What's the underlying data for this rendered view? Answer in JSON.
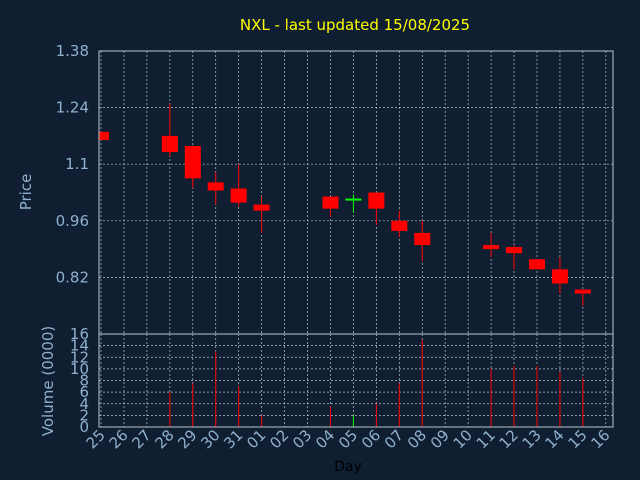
{
  "chart_data": {
    "type": "candlestick",
    "title": "NXL - last updated 15/08/2025",
    "xlabel": "Day",
    "colors": {
      "background": "#0f1e30",
      "down": "#ff0000",
      "up": "#00ff00",
      "title": "#ffff00",
      "axis_text": "#8fb1cf",
      "grid": "#b8c4d0"
    },
    "grid": true,
    "x_ticks": [
      "25",
      "26",
      "27",
      "28",
      "29",
      "30",
      "31",
      "01",
      "02",
      "03",
      "04",
      "05",
      "06",
      "07",
      "08",
      "09",
      "10",
      "11",
      "12",
      "13",
      "14",
      "15",
      "16"
    ],
    "price_panel": {
      "ylabel": "Price",
      "ylim": [
        0.68,
        1.38
      ],
      "y_ticks": [
        "1.38",
        "1.24",
        "1.1",
        "0.96",
        "0.82"
      ],
      "candles": [
        {
          "x": "25",
          "open": 1.18,
          "high": 1.18,
          "low": 1.16,
          "close": 1.16
        },
        {
          "x": "28",
          "open": 1.17,
          "high": 1.25,
          "low": 1.12,
          "close": 1.13
        },
        {
          "x": "29",
          "open": 1.145,
          "high": 1.145,
          "low": 1.04,
          "close": 1.065
        },
        {
          "x": "30",
          "open": 1.055,
          "high": 1.08,
          "low": 1.0,
          "close": 1.035
        },
        {
          "x": "31",
          "open": 1.04,
          "high": 1.1,
          "low": 0.995,
          "close": 1.005
        },
        {
          "x": "01",
          "open": 1.0,
          "high": 1.02,
          "low": 0.93,
          "close": 0.985
        },
        {
          "x": "04",
          "open": 1.02,
          "high": 1.02,
          "low": 0.97,
          "close": 0.99
        },
        {
          "x": "05",
          "open": 1.01,
          "high": 1.025,
          "low": 0.98,
          "close": 1.015
        },
        {
          "x": "06",
          "open": 1.03,
          "high": 1.03,
          "low": 0.95,
          "close": 0.99
        },
        {
          "x": "07",
          "open": 0.96,
          "high": 0.985,
          "low": 0.92,
          "close": 0.935
        },
        {
          "x": "08",
          "open": 0.93,
          "high": 0.96,
          "low": 0.86,
          "close": 0.9
        },
        {
          "x": "11",
          "open": 0.9,
          "high": 0.93,
          "low": 0.87,
          "close": 0.89
        },
        {
          "x": "12",
          "open": 0.895,
          "high": 0.9,
          "low": 0.84,
          "close": 0.88
        },
        {
          "x": "13",
          "open": 0.865,
          "high": 0.865,
          "low": 0.84,
          "close": 0.84
        },
        {
          "x": "14",
          "open": 0.84,
          "high": 0.87,
          "low": 0.78,
          "close": 0.805
        },
        {
          "x": "15",
          "open": 0.79,
          "high": 0.79,
          "low": 0.75,
          "close": 0.78
        }
      ]
    },
    "volume_panel": {
      "ylabel": "Volume (0000)",
      "ylim": [
        0,
        16
      ],
      "y_ticks": [
        "16",
        "14",
        "12",
        "10",
        "8",
        "6",
        "4",
        "2",
        "0"
      ],
      "volumes": [
        {
          "x": "25",
          "value": 0,
          "color": "#ff0000"
        },
        {
          "x": "28",
          "value": 6,
          "color": "#ff0000"
        },
        {
          "x": "29",
          "value": 7.5,
          "color": "#ff0000"
        },
        {
          "x": "30",
          "value": 13,
          "color": "#ff0000"
        },
        {
          "x": "31",
          "value": 7,
          "color": "#ff0000"
        },
        {
          "x": "01",
          "value": 2,
          "color": "#ff0000"
        },
        {
          "x": "04",
          "value": 3.5,
          "color": "#ff0000"
        },
        {
          "x": "05",
          "value": 2,
          "color": "#00ff00"
        },
        {
          "x": "06",
          "value": 4,
          "color": "#ff0000"
        },
        {
          "x": "07",
          "value": 7.5,
          "color": "#ff0000"
        },
        {
          "x": "08",
          "value": 15,
          "color": "#ff0000"
        },
        {
          "x": "11",
          "value": 10,
          "color": "#ff0000"
        },
        {
          "x": "12",
          "value": 10.5,
          "color": "#ff0000"
        },
        {
          "x": "13",
          "value": 10.5,
          "color": "#ff0000"
        },
        {
          "x": "14",
          "value": 9.5,
          "color": "#ff0000"
        },
        {
          "x": "15",
          "value": 8.5,
          "color": "#ff0000"
        }
      ]
    }
  }
}
